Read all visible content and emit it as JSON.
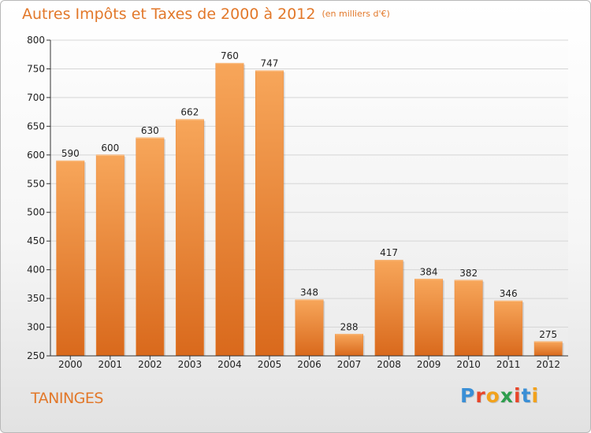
{
  "title": "Autres Impôts et Taxes de 2000 à 2012",
  "unit_note": "(en milliers d'€)",
  "town": "TANINGES",
  "logo": {
    "text": "Proxiti",
    "letters": [
      {
        "ch": "P",
        "color": "#3a8fd6"
      },
      {
        "ch": "r",
        "color": "#e8462a"
      },
      {
        "ch": "o",
        "color": "#f2a21c"
      },
      {
        "ch": "x",
        "color": "#2e9e4e"
      },
      {
        "ch": "i",
        "color": "#e8462a"
      },
      {
        "ch": "t",
        "color": "#3a8fd6"
      },
      {
        "ch": "i",
        "color": "#f2a21c"
      }
    ]
  },
  "colors": {
    "bar_top": "#f7a65a",
    "bar_bottom": "#d9691c",
    "title": "#e2782a",
    "axis": "#333333"
  },
  "chart_data": {
    "type": "bar",
    "categories": [
      "2000",
      "2001",
      "2002",
      "2003",
      "2004",
      "2005",
      "2006",
      "2007",
      "2008",
      "2009",
      "2010",
      "2011",
      "2012"
    ],
    "values": [
      590,
      600,
      630,
      662,
      760,
      747,
      348,
      288,
      417,
      384,
      382,
      346,
      275
    ],
    "ylim": [
      250,
      800
    ],
    "yticks": [
      250,
      300,
      350,
      400,
      450,
      500,
      550,
      600,
      650,
      700,
      750,
      800
    ],
    "grid": true,
    "data_labels": true
  }
}
